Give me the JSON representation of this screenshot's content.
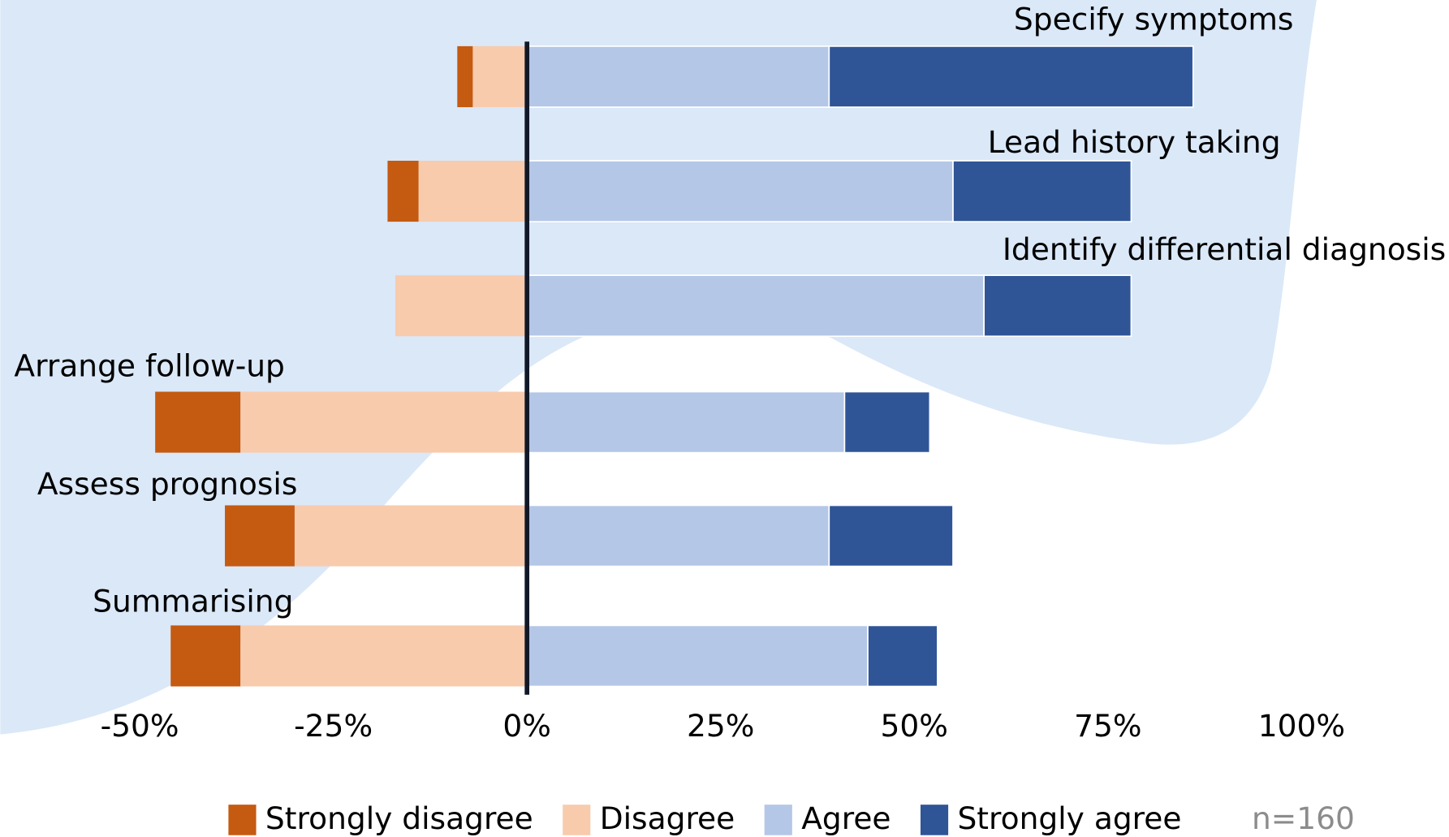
{
  "chart_data": {
    "type": "diverging-bar",
    "categories": [
      "Specify symptoms",
      "Lead history taking",
      "Identify differential diagnosis",
      "Arrange follow-up",
      "Assess prognosis",
      "Summarising"
    ],
    "series": [
      {
        "name": "Strongly disagree",
        "color": "#c55a11",
        "values": [
          -2,
          -4,
          0,
          -11,
          -9,
          -9
        ]
      },
      {
        "name": "Disagree",
        "color": "#f8cbad",
        "values": [
          -7,
          -14,
          -17,
          -37,
          -30,
          -37
        ]
      },
      {
        "name": "Agree",
        "color": "#b4c7e7",
        "values": [
          39,
          55,
          59,
          41,
          39,
          44
        ]
      },
      {
        "name": "Strongly agree",
        "color": "#2f5597",
        "values": [
          47,
          23,
          19,
          11,
          16,
          9
        ]
      }
    ],
    "xlim": [
      -68,
      119
    ],
    "xticks": [
      {
        "value": -50,
        "label": "-50%"
      },
      {
        "value": -25,
        "label": "-25%"
      },
      {
        "value": 0,
        "label": "0%"
      },
      {
        "value": 25,
        "label": "25%"
      },
      {
        "value": 50,
        "label": "50%"
      },
      {
        "value": 75,
        "label": "75%"
      },
      {
        "value": 100,
        "label": "100%"
      }
    ],
    "annotation": "n=160"
  }
}
